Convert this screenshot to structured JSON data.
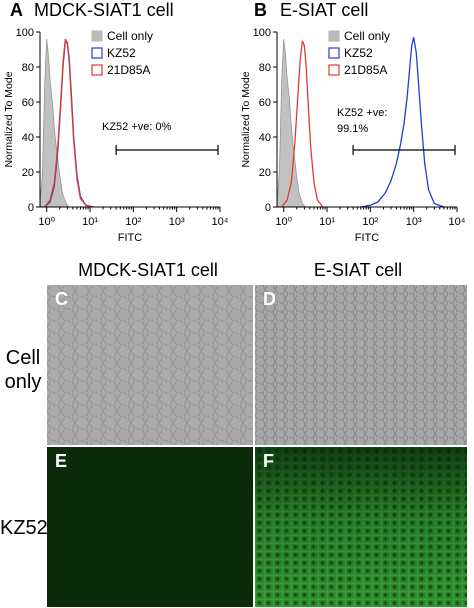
{
  "panels": {
    "A": {
      "letter": "A",
      "title": "MDCK-SIAT1 cell"
    },
    "B": {
      "letter": "B",
      "title": "E-SIAT cell"
    }
  },
  "legend_swatch_colors": [
    "#bbbbbb",
    "#1f3fd0",
    "#e03a2f"
  ],
  "chart_data": [
    {
      "type": "line",
      "panel": "A",
      "xlabel": "FITC",
      "ylabel": "Normalized To Mode",
      "xscale": "log",
      "xlim": [
        0.7,
        10000
      ],
      "ylim": [
        0,
        100
      ],
      "x_ticks": [
        "10⁰",
        "10¹",
        "10²",
        "10³",
        "10⁴"
      ],
      "y_ticks": [
        "0",
        "20",
        "40",
        "60",
        "80",
        "100"
      ],
      "legend": [
        "Cell only",
        "KZ52",
        "21D85A"
      ],
      "legend_position": "top-right",
      "annotation": "KZ52 +ve: 0%",
      "gate": [
        40,
        9000
      ],
      "series": [
        {
          "name": "Cell only",
          "color": "#bbbbbb",
          "filled": true,
          "x": [
            0.7,
            0.8,
            0.9,
            1.0,
            1.1,
            1.2,
            1.35,
            1.5,
            1.7,
            2.0,
            2.3,
            2.7,
            3.2
          ],
          "y": [
            2,
            20,
            70,
            96,
            86,
            72,
            60,
            45,
            32,
            18,
            8,
            3,
            0
          ]
        },
        {
          "name": "KZ52",
          "color": "#1f3fd0",
          "x": [
            0.9,
            1.2,
            1.5,
            1.8,
            2.1,
            2.4,
            2.7,
            3.0,
            3.3,
            3.7,
            4.2,
            5.0,
            6.0,
            8.0,
            12
          ],
          "y": [
            0,
            3,
            12,
            32,
            58,
            82,
            95,
            94,
            85,
            65,
            40,
            18,
            6,
            1,
            0
          ]
        },
        {
          "name": "21D85A",
          "color": "#e03a2f",
          "x": [
            0.9,
            1.2,
            1.5,
            1.8,
            2.1,
            2.4,
            2.7,
            3.0,
            3.3,
            3.7,
            4.2,
            5.0,
            6.0,
            8.0,
            12
          ],
          "y": [
            0,
            4,
            14,
            35,
            60,
            84,
            96,
            93,
            83,
            62,
            38,
            16,
            5,
            1,
            0
          ]
        }
      ]
    },
    {
      "type": "line",
      "panel": "B",
      "xlabel": "FITC",
      "ylabel": "Normalized To Mode",
      "xscale": "log",
      "xlim": [
        0.7,
        10000
      ],
      "ylim": [
        0,
        100
      ],
      "x_ticks": [
        "10⁰",
        "10¹",
        "10²",
        "10³",
        "10⁴"
      ],
      "y_ticks": [
        "0",
        "20",
        "40",
        "60",
        "80",
        "100"
      ],
      "legend": [
        "Cell only",
        "KZ52",
        "21D85A"
      ],
      "legend_position": "top-right",
      "annotation": [
        "KZ52 +ve:",
        "99.1%"
      ],
      "gate": [
        40,
        9000
      ],
      "series": [
        {
          "name": "Cell only",
          "color": "#bbbbbb",
          "filled": true,
          "x": [
            0.7,
            0.8,
            0.9,
            1.0,
            1.1,
            1.2,
            1.35,
            1.5,
            1.7,
            2.0,
            2.3,
            2.7,
            3.2
          ],
          "y": [
            2,
            22,
            72,
            96,
            87,
            74,
            62,
            46,
            32,
            17,
            7,
            2,
            0
          ]
        },
        {
          "name": "21D85A",
          "color": "#e03a2f",
          "x": [
            0.9,
            1.2,
            1.5,
            1.8,
            2.1,
            2.4,
            2.7,
            3.0,
            3.3,
            3.7,
            4.2,
            5.0,
            6.0,
            8.0
          ],
          "y": [
            0,
            4,
            14,
            36,
            62,
            84,
            95,
            92,
            80,
            58,
            34,
            14,
            4,
            0
          ]
        },
        {
          "name": "KZ52",
          "color": "#1f3fd0",
          "x": [
            60,
            100,
            150,
            220,
            300,
            400,
            500,
            600,
            700,
            800,
            900,
            1000,
            1150,
            1300,
            1500,
            1800,
            2200,
            3000,
            5000
          ],
          "y": [
            0,
            1,
            3,
            8,
            15,
            25,
            36,
            48,
            62,
            78,
            92,
            97,
            88,
            70,
            48,
            25,
            10,
            2,
            0
          ]
        }
      ]
    }
  ],
  "micro": {
    "col_titles": [
      "MDCK-SIAT1 cell",
      "E-SIAT cell"
    ],
    "row_labels": [
      [
        "Cell",
        "only"
      ],
      [
        "KZ52"
      ]
    ],
    "letters": {
      "C": "C",
      "D": "D",
      "E": "E",
      "F": "F"
    },
    "colors": {
      "brightfield_bg": "#a8a8a8",
      "fluor_dark": "#0a2a0a",
      "fluor_bright": "#2f9a2f"
    }
  }
}
